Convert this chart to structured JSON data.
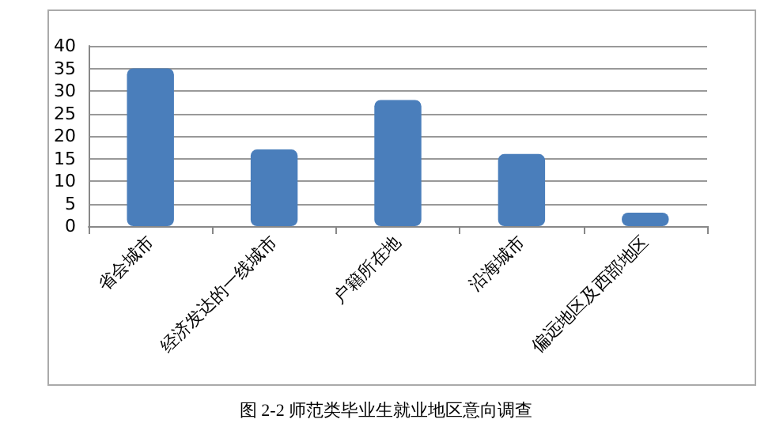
{
  "chart_data": {
    "type": "bar",
    "categories": [
      "省会城市",
      "经济发达的一线城市",
      "户籍所在地",
      "沿海城市",
      "偏远地区及西部地区"
    ],
    "values": [
      35,
      17,
      28,
      16,
      3
    ],
    "color": "#4a7ebb",
    "ylim": [
      0,
      40
    ],
    "yticks": [
      0,
      5,
      10,
      15,
      20,
      25,
      30,
      35,
      40
    ],
    "grid": "y",
    "annotations": [
      "图 2-2 师范类毕业生就业地区意向调查"
    ]
  }
}
